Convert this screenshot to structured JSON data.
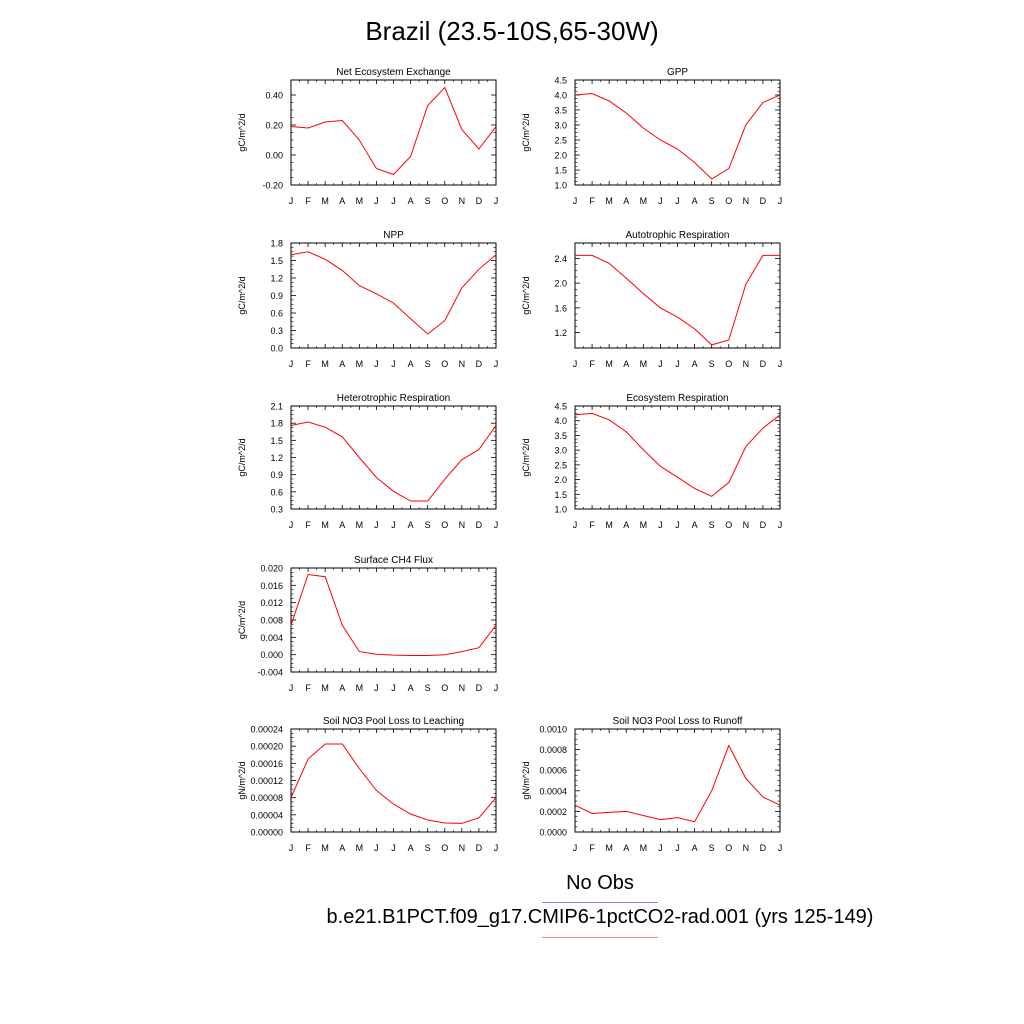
{
  "title": "Brazil (23.5-10S,65-30W)",
  "colors": {
    "model_line": "#ff0000",
    "obs_legend_line": "#7f7fff",
    "case_legend_line": "#ff7f7f"
  },
  "legend": {
    "obs_label": "No Obs",
    "case_label": "b.e21.B1PCT.f09_g17.CMIP6-1pctCO2-rad.001 (yrs 125-149)"
  },
  "chart_data": [
    {
      "type": "line",
      "title": "Net Ecosystem Exchange",
      "ylabel": "gC/m^2/d",
      "categories": [
        "J",
        "F",
        "M",
        "A",
        "M",
        "J",
        "J",
        "A",
        "S",
        "O",
        "N",
        "D",
        "J"
      ],
      "ylim": [
        -0.2,
        0.5
      ],
      "yticks": [
        -0.2,
        0.0,
        0.2,
        0.4
      ],
      "ytick_labels": [
        "-0.20",
        "0.00",
        "0.20",
        "0.40"
      ],
      "values": [
        0.19,
        0.18,
        0.22,
        0.23,
        0.1,
        -0.09,
        -0.13,
        -0.01,
        0.33,
        0.45,
        0.17,
        0.04,
        0.19
      ]
    },
    {
      "type": "line",
      "title": "GPP",
      "ylabel": "gC/m^2/d",
      "categories": [
        "J",
        "F",
        "M",
        "A",
        "M",
        "J",
        "J",
        "A",
        "S",
        "O",
        "N",
        "D",
        "J"
      ],
      "ylim": [
        1.0,
        4.5
      ],
      "yticks": [
        1.0,
        1.5,
        2.0,
        2.5,
        3.0,
        3.5,
        4.0,
        4.5
      ],
      "ytick_labels": [
        "1.0",
        "1.5",
        "2.0",
        "2.5",
        "3.0",
        "3.5",
        "4.0",
        "4.5"
      ],
      "values": [
        4.0,
        4.05,
        3.8,
        3.4,
        2.9,
        2.5,
        2.2,
        1.75,
        1.2,
        1.55,
        3.0,
        3.75,
        4.0
      ]
    },
    {
      "type": "line",
      "title": "NPP",
      "ylabel": "gC/m^2/d",
      "categories": [
        "J",
        "F",
        "M",
        "A",
        "M",
        "J",
        "J",
        "A",
        "S",
        "O",
        "N",
        "D",
        "J"
      ],
      "ylim": [
        0.0,
        1.8
      ],
      "yticks": [
        0.0,
        0.3,
        0.6,
        0.9,
        1.2,
        1.5,
        1.8
      ],
      "ytick_labels": [
        "0.0",
        "0.3",
        "0.6",
        "0.9",
        "1.2",
        "1.5",
        "1.8"
      ],
      "values": [
        1.6,
        1.65,
        1.52,
        1.33,
        1.07,
        0.93,
        0.77,
        0.5,
        0.24,
        0.47,
        1.03,
        1.35,
        1.6
      ]
    },
    {
      "type": "line",
      "title": "Autotrophic Respiration",
      "ylabel": "gC/m^2/d",
      "categories": [
        "J",
        "F",
        "M",
        "A",
        "M",
        "J",
        "J",
        "A",
        "S",
        "O",
        "N",
        "D",
        "J"
      ],
      "ylim": [
        0.95,
        2.65
      ],
      "yticks": [
        1.2,
        1.6,
        2.0,
        2.4
      ],
      "ytick_labels": [
        "1.2",
        "1.6",
        "2.0",
        "2.4"
      ],
      "values": [
        2.45,
        2.45,
        2.32,
        2.08,
        1.83,
        1.6,
        1.45,
        1.26,
        1.0,
        1.08,
        1.98,
        2.45,
        2.45
      ]
    },
    {
      "type": "line",
      "title": "Heterotrophic Respiration",
      "ylabel": "gC/m^2/d",
      "categories": [
        "J",
        "F",
        "M",
        "A",
        "M",
        "J",
        "J",
        "A",
        "S",
        "O",
        "N",
        "D",
        "J"
      ],
      "ylim": [
        0.3,
        2.1
      ],
      "yticks": [
        0.3,
        0.6,
        0.9,
        1.2,
        1.5,
        1.8,
        2.1
      ],
      "ytick_labels": [
        "0.3",
        "0.6",
        "0.9",
        "1.2",
        "1.5",
        "1.8",
        "2.1"
      ],
      "values": [
        1.76,
        1.82,
        1.73,
        1.56,
        1.2,
        0.85,
        0.61,
        0.44,
        0.44,
        0.82,
        1.16,
        1.34,
        1.76
      ]
    },
    {
      "type": "line",
      "title": "Ecosystem Respiration",
      "ylabel": "gC/m^2/d",
      "categories": [
        "J",
        "F",
        "M",
        "A",
        "M",
        "J",
        "J",
        "A",
        "S",
        "O",
        "N",
        "D",
        "J"
      ],
      "ylim": [
        1.0,
        4.5
      ],
      "yticks": [
        1.0,
        1.5,
        2.0,
        2.5,
        3.0,
        3.5,
        4.0,
        4.5
      ],
      "ytick_labels": [
        "1.0",
        "1.5",
        "2.0",
        "2.5",
        "3.0",
        "3.5",
        "4.0",
        "4.5"
      ],
      "values": [
        4.2,
        4.25,
        4.03,
        3.62,
        3.02,
        2.45,
        2.08,
        1.7,
        1.43,
        1.9,
        3.12,
        3.75,
        4.2
      ]
    },
    {
      "type": "line",
      "title": "Surface CH4 Flux",
      "ylabel": "gC/m^2/d",
      "categories": [
        "J",
        "F",
        "M",
        "A",
        "M",
        "J",
        "J",
        "A",
        "S",
        "O",
        "N",
        "D",
        "J"
      ],
      "ylim": [
        -0.004,
        0.02
      ],
      "yticks": [
        -0.004,
        0.0,
        0.004,
        0.008,
        0.012,
        0.016,
        0.02
      ],
      "ytick_labels": [
        "-0.004",
        "0.000",
        "0.004",
        "0.008",
        "0.012",
        "0.016",
        "0.020"
      ],
      "values": [
        0.0068,
        0.0185,
        0.018,
        0.0068,
        0.0007,
        0.0001,
        -0.0001,
        -0.0002,
        -0.0002,
        0.0,
        0.0007,
        0.0016,
        0.0068
      ]
    },
    {
      "type": "line",
      "title": "Soil NO3 Pool Loss to Leaching",
      "ylabel": "gN/m^2/d",
      "categories": [
        "J",
        "F",
        "M",
        "A",
        "M",
        "J",
        "J",
        "A",
        "S",
        "O",
        "N",
        "D",
        "J"
      ],
      "ylim": [
        0.0,
        0.00024
      ],
      "yticks": [
        0.0,
        4e-05,
        8e-05,
        0.00012,
        0.00016,
        0.0002,
        0.00024
      ],
      "ytick_labels": [
        "0.00000",
        "0.00004",
        "0.00008",
        "0.00012",
        "0.00016",
        "0.00020",
        "0.00024"
      ],
      "values": [
        8e-05,
        0.00017,
        0.000205,
        0.000205,
        0.000148,
        9.7e-05,
        6.5e-05,
        4.2e-05,
        2.8e-05,
        2.1e-05,
        2e-05,
        3.3e-05,
        8e-05
      ]
    },
    {
      "type": "line",
      "title": "Soil NO3 Pool Loss to Runoff",
      "ylabel": "gN/m^2/d",
      "categories": [
        "J",
        "F",
        "M",
        "A",
        "M",
        "J",
        "J",
        "A",
        "S",
        "O",
        "N",
        "D",
        "J"
      ],
      "ylim": [
        0.0,
        0.001
      ],
      "yticks": [
        0.0,
        0.0002,
        0.0004,
        0.0006,
        0.0008,
        0.001
      ],
      "ytick_labels": [
        "0.0000",
        "0.0002",
        "0.0004",
        "0.0006",
        "0.0008",
        "0.0010"
      ],
      "values": [
        0.00026,
        0.00018,
        0.00019,
        0.0002,
        0.00016,
        0.00012,
        0.00014,
        0.0001,
        0.0004,
        0.00084,
        0.00052,
        0.00034,
        0.00026
      ]
    }
  ]
}
